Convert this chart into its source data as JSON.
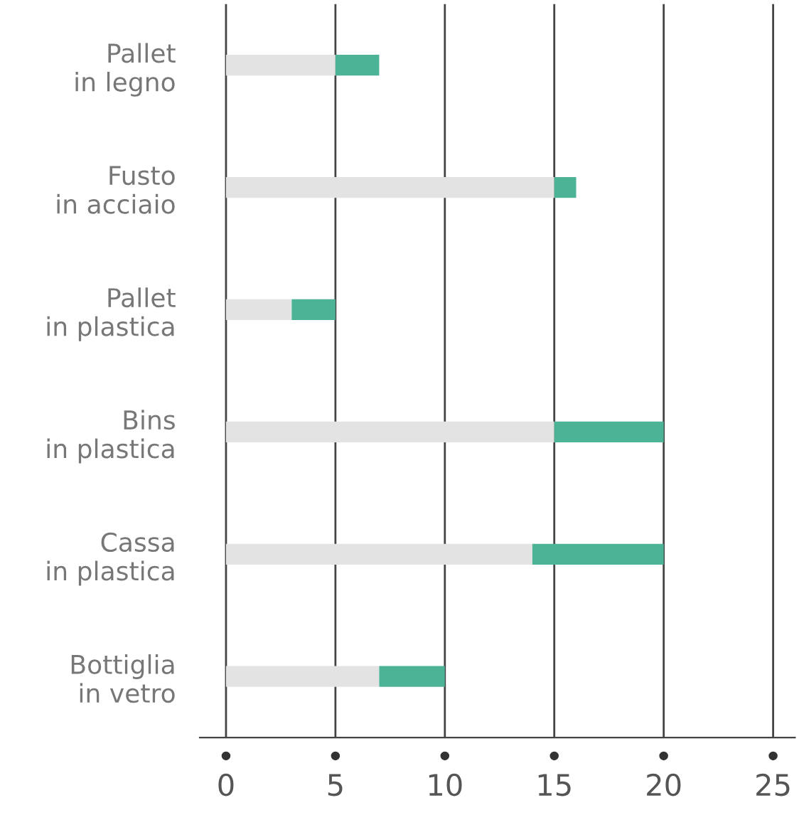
{
  "chart_data": {
    "type": "bar",
    "orientation": "horizontal",
    "stacked": true,
    "categories": [
      "Pallet\nin legno",
      "Fusto\nin acciaio",
      "Pallet\nin plastica",
      "Bins\nin plastica",
      "Cassa\nin plastica",
      "Bottiglia\nin vetro"
    ],
    "series": [
      {
        "color": "#e3e3e3",
        "values": [
          5,
          15,
          3,
          15,
          14,
          7
        ]
      },
      {
        "color": "#4db396",
        "values": [
          2,
          1,
          2,
          5,
          6,
          3
        ]
      }
    ],
    "xlim": [
      -1.2,
      26
    ],
    "xticks": [
      0,
      5,
      10,
      15,
      20,
      25
    ],
    "grid": "x",
    "legend": false
  }
}
